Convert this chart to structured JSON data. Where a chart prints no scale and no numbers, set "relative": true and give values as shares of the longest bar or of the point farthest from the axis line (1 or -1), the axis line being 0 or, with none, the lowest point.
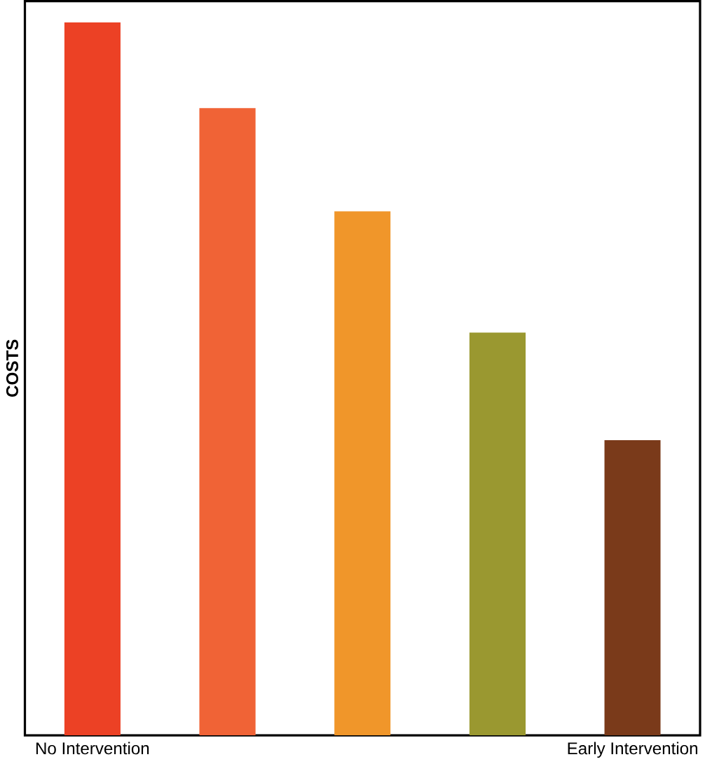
{
  "chart_data": {
    "type": "bar",
    "relative": true,
    "ylabel": "COSTS",
    "categories": [
      "No Intervention",
      null,
      null,
      null,
      "Early Intervention"
    ],
    "values": [
      1,
      0.88,
      0.735,
      0.565,
      0.414
    ],
    "colors": [
      "#ec4125",
      "#f06336",
      "#f0962a",
      "#9a9830",
      "#7a3a1a"
    ]
  }
}
